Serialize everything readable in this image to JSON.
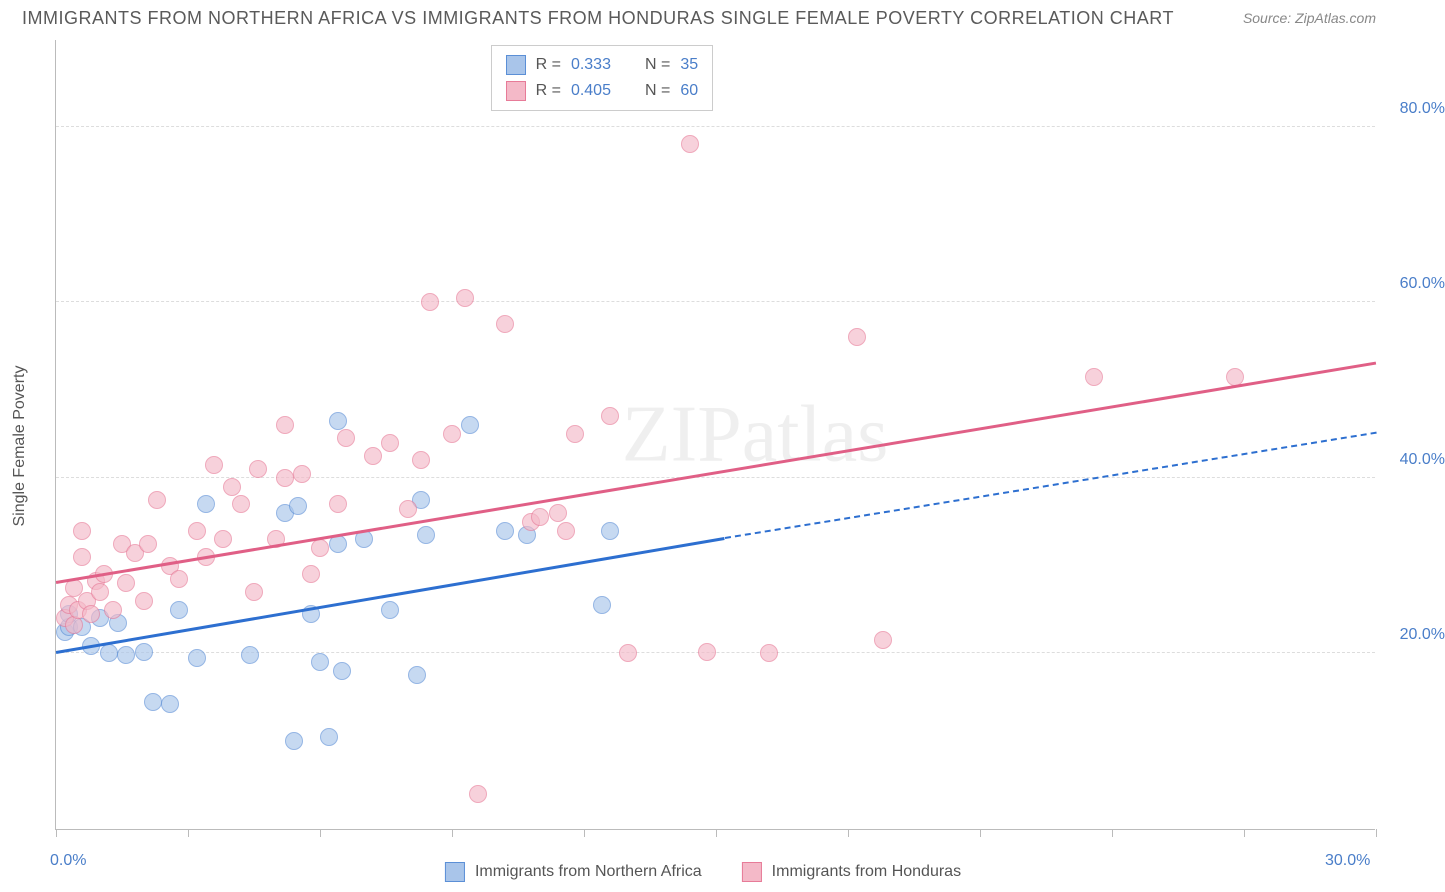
{
  "title": "IMMIGRANTS FROM NORTHERN AFRICA VS IMMIGRANTS FROM HONDURAS SINGLE FEMALE POVERTY CORRELATION CHART",
  "source": "Source: ZipAtlas.com",
  "y_axis_label": "Single Female Poverty",
  "watermark": "ZIPatlas",
  "chart": {
    "type": "scatter",
    "xlim": [
      0,
      30
    ],
    "ylim": [
      0,
      90
    ],
    "x_ticks": [
      0,
      3,
      6,
      9,
      12,
      15,
      18,
      21,
      24,
      27,
      30
    ],
    "x_tick_labels": {
      "0": "0.0%",
      "30": "30.0%"
    },
    "y_grid": [
      20,
      40,
      60,
      80
    ],
    "y_tick_labels": {
      "20": "20.0%",
      "40": "40.0%",
      "60": "60.0%",
      "80": "80.0%"
    },
    "background_color": "#ffffff",
    "grid_color": "#dddddd",
    "axis_color": "#bbbbbb",
    "tick_label_color": "#4a7ec9",
    "axis_label_color": "#555555",
    "point_radius": 9,
    "point_opacity": 0.65,
    "series": [
      {
        "name": "Immigrants from Northern Africa",
        "label": "Immigrants from Northern Africa",
        "fill_color": "#a9c5ea",
        "stroke_color": "#5b8fd6",
        "line_color": "#2d6fd0",
        "R": "0.333",
        "N": "35",
        "trend": {
          "x1": 0,
          "y1": 20,
          "x2": 15.2,
          "y2": 33,
          "x2_dash": 30,
          "y2_dash": 45
        },
        "points": [
          [
            0.2,
            22.5
          ],
          [
            0.3,
            23
          ],
          [
            0.3,
            24.5
          ],
          [
            0.6,
            23
          ],
          [
            0.8,
            20.8
          ],
          [
            1.0,
            24
          ],
          [
            1.2,
            20
          ],
          [
            1.4,
            23.5
          ],
          [
            1.6,
            19.8
          ],
          [
            2.0,
            20.2
          ],
          [
            2.2,
            14.5
          ],
          [
            2.6,
            14.2
          ],
          [
            2.8,
            25
          ],
          [
            3.2,
            19.5
          ],
          [
            3.4,
            37
          ],
          [
            4.4,
            19.8
          ],
          [
            5.2,
            36
          ],
          [
            5.4,
            10
          ],
          [
            5.5,
            36.8
          ],
          [
            5.8,
            24.5
          ],
          [
            6.0,
            19
          ],
          [
            6.2,
            10.5
          ],
          [
            6.4,
            46.5
          ],
          [
            6.4,
            32.5
          ],
          [
            6.5,
            18
          ],
          [
            7.0,
            33
          ],
          [
            7.6,
            25
          ],
          [
            8.2,
            17.5
          ],
          [
            8.3,
            37.5
          ],
          [
            8.4,
            33.5
          ],
          [
            9.4,
            46
          ],
          [
            10.2,
            34
          ],
          [
            10.7,
            33.5
          ],
          [
            12.4,
            25.5
          ],
          [
            12.6,
            34
          ]
        ]
      },
      {
        "name": "Immigrants from Honduras",
        "label": "Immigrants from Honduras",
        "fill_color": "#f4b9c8",
        "stroke_color": "#e77b98",
        "line_color": "#e05f86",
        "R": "0.405",
        "N": "60",
        "trend": {
          "x1": 0,
          "y1": 28,
          "x2": 30,
          "y2": 53
        },
        "points": [
          [
            0.2,
            24
          ],
          [
            0.3,
            25.5
          ],
          [
            0.4,
            23.2
          ],
          [
            0.4,
            27.5
          ],
          [
            0.5,
            25
          ],
          [
            0.6,
            31
          ],
          [
            0.7,
            26
          ],
          [
            0.8,
            24.5
          ],
          [
            0.9,
            28.2
          ],
          [
            1.0,
            27
          ],
          [
            1.1,
            29
          ],
          [
            0.6,
            34
          ],
          [
            1.3,
            25
          ],
          [
            1.5,
            32.5
          ],
          [
            1.6,
            28
          ],
          [
            1.8,
            31.5
          ],
          [
            2.0,
            26
          ],
          [
            2.1,
            32.5
          ],
          [
            2.3,
            37.5
          ],
          [
            2.6,
            30
          ],
          [
            2.8,
            28.5
          ],
          [
            3.2,
            34
          ],
          [
            3.4,
            31
          ],
          [
            3.6,
            41.5
          ],
          [
            3.8,
            33
          ],
          [
            4.0,
            39
          ],
          [
            4.2,
            37
          ],
          [
            4.5,
            27
          ],
          [
            4.6,
            41
          ],
          [
            5.0,
            33
          ],
          [
            5.2,
            40
          ],
          [
            5.2,
            46
          ],
          [
            5.6,
            40.5
          ],
          [
            6.0,
            32
          ],
          [
            6.4,
            37
          ],
          [
            6.6,
            44.5
          ],
          [
            7.2,
            42.5
          ],
          [
            7.6,
            44
          ],
          [
            8.0,
            36.5
          ],
          [
            8.3,
            42
          ],
          [
            8.5,
            60
          ],
          [
            9.0,
            45
          ],
          [
            9.3,
            60.5
          ],
          [
            9.6,
            4
          ],
          [
            10.2,
            57.5
          ],
          [
            10.8,
            35
          ],
          [
            11.0,
            35.5
          ],
          [
            11.4,
            36
          ],
          [
            11.6,
            34
          ],
          [
            12.6,
            47
          ],
          [
            13.0,
            20
          ],
          [
            14.4,
            78
          ],
          [
            14.8,
            20.2
          ],
          [
            16.2,
            20
          ],
          [
            18.2,
            56
          ],
          [
            18.8,
            21.5
          ],
          [
            23.6,
            51.5
          ],
          [
            26.8,
            51.5
          ],
          [
            11.8,
            45
          ],
          [
            5.8,
            29
          ]
        ]
      }
    ],
    "top_legend": {
      "r_label": "R  =",
      "n_label": "N  ="
    }
  }
}
